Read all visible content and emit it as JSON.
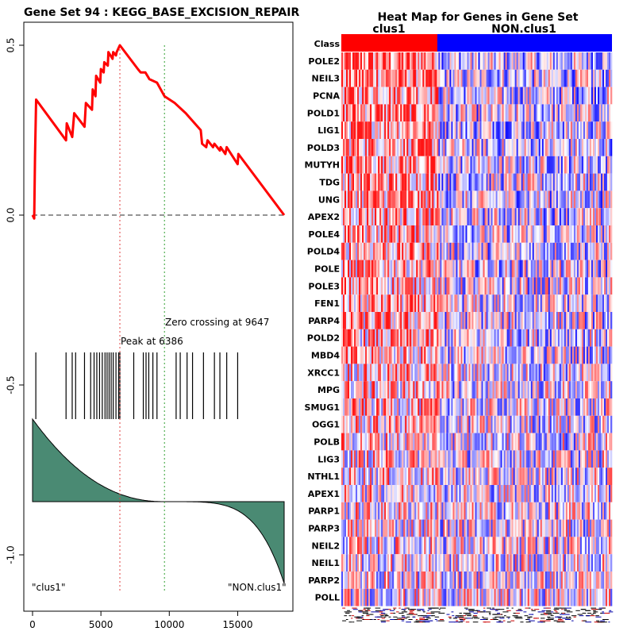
{
  "es_plot": {
    "title": "Gene Set  94 : KEGG_BASE_EXCISION_REPAIR",
    "peak_label": "Peak at 6386",
    "zero_label": "Zero crossing at 9647",
    "left_label": "\"clus1\"",
    "right_label": "\"NON.clus1\""
  },
  "heatmap": {
    "title": "Heat Map for Genes in Gene Set",
    "class_row_label": "Class",
    "class_left": "clus1",
    "class_right": "NON.clus1",
    "genes": [
      "POLE2",
      "NEIL3",
      "PCNA",
      "POLD1",
      "LIG1",
      "POLD3",
      "MUTYH",
      "TDG",
      "UNG",
      "APEX2",
      "POLE4",
      "POLD4",
      "POLE",
      "POLE3",
      "FEN1",
      "PARP4",
      "POLD2",
      "MBD4",
      "XRCC1",
      "MPG",
      "SMUG1",
      "OGG1",
      "POLB",
      "LIG3",
      "NTHL1",
      "APEX1",
      "PARP1",
      "PARP3",
      "NEIL2",
      "NEIL1",
      "PARP2",
      "POLL"
    ],
    "colors": {
      "high": "#ff0000",
      "low": "#0000ff",
      "mid": "#ffffff"
    }
  },
  "chart_data": {
    "type": "line",
    "x_total": 18400,
    "xlim": [
      0,
      18400
    ],
    "ylim": [
      -1.1,
      0.55
    ],
    "xticks": [
      0,
      5000,
      10000,
      15000
    ],
    "xtick_labels": [
      "0",
      "5000",
      "10000",
      "15000"
    ],
    "yticks": [
      0.5,
      0.0,
      -0.5,
      -1.0
    ],
    "ytick_labels": [
      "0.5",
      "0.0",
      "-0.5",
      "-1.0"
    ],
    "peak_x": 6386,
    "zero_crossing_x": 9647,
    "hits": [
      240,
      2450,
      2900,
      3150,
      3800,
      4250,
      4500,
      4700,
      4900,
      5100,
      5300,
      5450,
      5600,
      5750,
      5900,
      6100,
      6300,
      6386,
      7400,
      8100,
      8300,
      8500,
      8800,
      9100,
      10500,
      10800,
      11300,
      11700,
      12500,
      13300,
      13700,
      14200,
      15000
    ],
    "es_points": [
      [
        0,
        0
      ],
      [
        120,
        -0.01
      ],
      [
        180,
        0.17
      ],
      [
        260,
        0.34
      ],
      [
        2450,
        0.22
      ],
      [
        2500,
        0.27
      ],
      [
        2900,
        0.23
      ],
      [
        3050,
        0.3
      ],
      [
        3800,
        0.26
      ],
      [
        3900,
        0.33
      ],
      [
        4350,
        0.31
      ],
      [
        4400,
        0.37
      ],
      [
        4600,
        0.35
      ],
      [
        4650,
        0.41
      ],
      [
        4950,
        0.39
      ],
      [
        5000,
        0.43
      ],
      [
        5200,
        0.42
      ],
      [
        5250,
        0.45
      ],
      [
        5500,
        0.44
      ],
      [
        5550,
        0.48
      ],
      [
        5850,
        0.46
      ],
      [
        5900,
        0.48
      ],
      [
        6100,
        0.47
      ],
      [
        6150,
        0.48
      ],
      [
        6386,
        0.5
      ],
      [
        7700,
        0.43
      ],
      [
        7900,
        0.42
      ],
      [
        8250,
        0.42
      ],
      [
        8550,
        0.4
      ],
      [
        9100,
        0.39
      ],
      [
        9647,
        0.35
      ],
      [
        10400,
        0.33
      ],
      [
        11200,
        0.3
      ],
      [
        12300,
        0.25
      ],
      [
        12400,
        0.21
      ],
      [
        12700,
        0.2
      ],
      [
        12800,
        0.22
      ],
      [
        13200,
        0.2
      ],
      [
        13300,
        0.21
      ],
      [
        13700,
        0.19
      ],
      [
        13750,
        0.2
      ],
      [
        14100,
        0.18
      ],
      [
        14200,
        0.2
      ],
      [
        15000,
        0.15
      ],
      [
        15050,
        0.18
      ],
      [
        18400,
        0
      ]
    ],
    "metric": {
      "start": 0.75,
      "zero_at": 9647,
      "end": -0.75
    }
  }
}
